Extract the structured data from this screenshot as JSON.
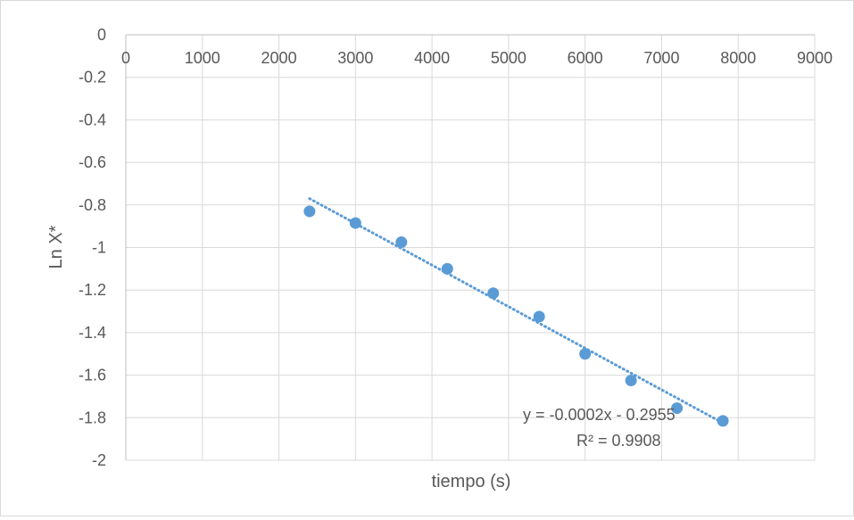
{
  "chart_data": {
    "type": "scatter",
    "title": "",
    "xlabel": "tiempo (s)",
    "ylabel": "Ln X*",
    "xlim": [
      0,
      9000
    ],
    "ylim": [
      -2,
      0
    ],
    "x_ticks": [
      0,
      1000,
      2000,
      3000,
      4000,
      5000,
      6000,
      7000,
      8000,
      9000
    ],
    "x_tick_labels": [
      "0",
      "1000",
      "2000",
      "3000",
      "4000",
      "5000",
      "6000",
      "7000",
      "8000",
      "9000"
    ],
    "y_ticks": [
      0,
      -0.2,
      -0.4,
      -0.6,
      -0.8,
      -1,
      -1.2,
      -1.4,
      -1.6,
      -1.8,
      -2
    ],
    "y_tick_labels": [
      "0",
      "-0.2",
      "-0.4",
      "-0.6",
      "-0.8",
      "-1",
      "-1.2",
      "-1.4",
      "-1.6",
      "-1.8",
      "-2"
    ],
    "grid": true,
    "legend": "none",
    "series": [
      {
        "color": "#5b9bd5",
        "x": [
          2400,
          3000,
          3600,
          4200,
          4800,
          5400,
          6000,
          6600,
          7200,
          7800
        ],
        "y": [
          -0.83,
          -0.885,
          -0.975,
          -1.1,
          -1.215,
          -1.325,
          -1.5,
          -1.625,
          -1.755,
          -1.815
        ]
      }
    ],
    "trendline": {
      "type": "linear",
      "style": "dotted",
      "color": "#5b9bd5",
      "x_range": [
        2400,
        7800
      ],
      "y_range": [
        -0.77,
        -1.825
      ],
      "equation_label": "y = -0.0002x - 0.2955",
      "r2_label": "R² = 0.9908"
    }
  }
}
